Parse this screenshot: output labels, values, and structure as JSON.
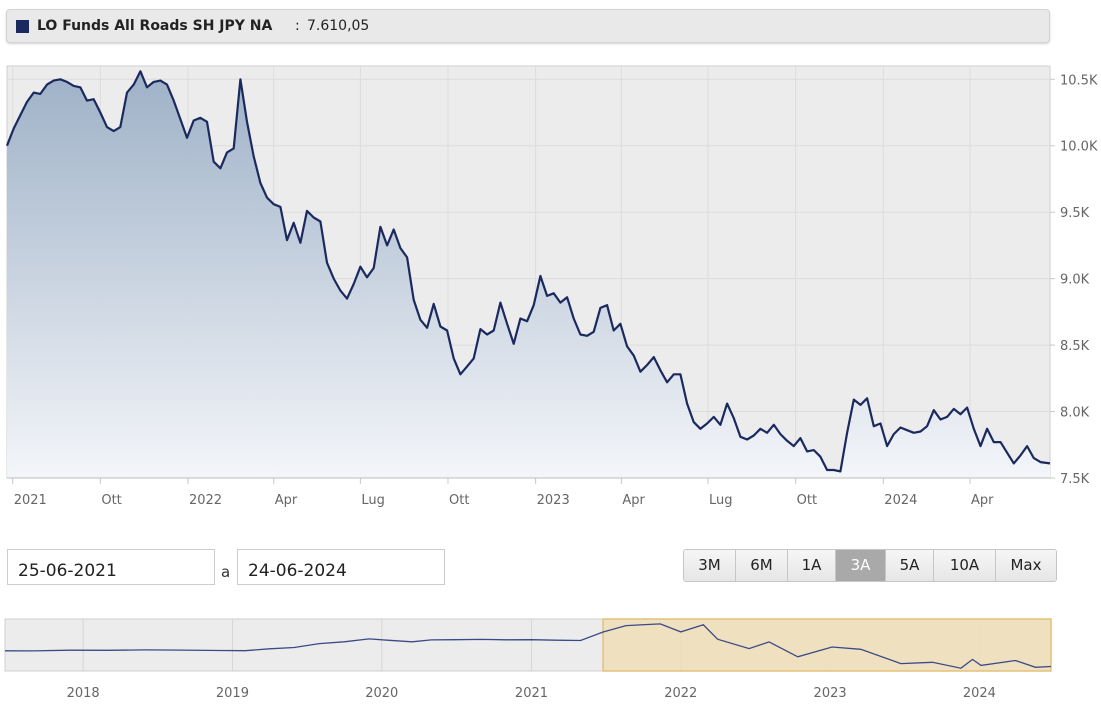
{
  "header": {
    "fund_name": "LO Funds All Roads SH JPY NA",
    "separator": ":",
    "last_value": "7.610,05",
    "series_color": "#1b2a5e"
  },
  "chart_data": [
    {
      "type": "area",
      "ylim": [
        7500,
        10600
      ],
      "y_ticks": [
        7500,
        8000,
        8500,
        9000,
        9500,
        10000,
        10500
      ],
      "y_tick_labels": [
        "7.5K",
        "8.0K",
        "8.5K",
        "9.0K",
        "9.5K",
        "10.0K",
        "10.5K"
      ],
      "x_range": [
        "2021-06-25",
        "2024-06-24"
      ],
      "x_ticks": [
        {
          "date": "2021-07-01",
          "label": "2021"
        },
        {
          "date": "2021-10-01",
          "label": "Ott"
        },
        {
          "date": "2022-01-01",
          "label": "2022"
        },
        {
          "date": "2022-04-01",
          "label": "Apr"
        },
        {
          "date": "2022-07-01",
          "label": "Lug"
        },
        {
          "date": "2022-10-01",
          "label": "Ott"
        },
        {
          "date": "2023-01-01",
          "label": "2023"
        },
        {
          "date": "2023-04-01",
          "label": "Apr"
        },
        {
          "date": "2023-07-01",
          "label": "Lug"
        },
        {
          "date": "2023-10-01",
          "label": "Ott"
        },
        {
          "date": "2024-01-01",
          "label": "2024"
        },
        {
          "date": "2024-04-01",
          "label": "Apr"
        }
      ],
      "grid": true,
      "series": [
        {
          "color": "#1b2a5e",
          "points": [
            [
              "2021-06-25",
              10000
            ],
            [
              "2021-07-02",
              10130
            ],
            [
              "2021-07-09",
              10230
            ],
            [
              "2021-07-16",
              10330
            ],
            [
              "2021-07-23",
              10400
            ],
            [
              "2021-07-30",
              10390
            ],
            [
              "2021-08-06",
              10460
            ],
            [
              "2021-08-13",
              10490
            ],
            [
              "2021-08-20",
              10500
            ],
            [
              "2021-08-27",
              10480
            ],
            [
              "2021-09-03",
              10450
            ],
            [
              "2021-09-10",
              10440
            ],
            [
              "2021-09-17",
              10340
            ],
            [
              "2021-09-24",
              10350
            ],
            [
              "2021-10-01",
              10250
            ],
            [
              "2021-10-08",
              10140
            ],
            [
              "2021-10-15",
              10110
            ],
            [
              "2021-10-22",
              10140
            ],
            [
              "2021-10-29",
              10400
            ],
            [
              "2021-11-05",
              10460
            ],
            [
              "2021-11-12",
              10560
            ],
            [
              "2021-11-19",
              10440
            ],
            [
              "2021-11-26",
              10480
            ],
            [
              "2021-12-03",
              10490
            ],
            [
              "2021-12-10",
              10460
            ],
            [
              "2021-12-17",
              10340
            ],
            [
              "2021-12-24",
              10200
            ],
            [
              "2021-12-31",
              10060
            ],
            [
              "2022-01-07",
              10190
            ],
            [
              "2022-01-14",
              10210
            ],
            [
              "2022-01-21",
              10180
            ],
            [
              "2022-01-28",
              9880
            ],
            [
              "2022-02-04",
              9830
            ],
            [
              "2022-02-11",
              9950
            ],
            [
              "2022-02-18",
              9980
            ],
            [
              "2022-02-25",
              10500
            ],
            [
              "2022-03-04",
              10180
            ],
            [
              "2022-03-11",
              9920
            ],
            [
              "2022-03-18",
              9720
            ],
            [
              "2022-03-25",
              9610
            ],
            [
              "2022-04-01",
              9560
            ],
            [
              "2022-04-08",
              9540
            ],
            [
              "2022-04-15",
              9290
            ],
            [
              "2022-04-22",
              9420
            ],
            [
              "2022-04-29",
              9270
            ],
            [
              "2022-05-06",
              9510
            ],
            [
              "2022-05-13",
              9460
            ],
            [
              "2022-05-20",
              9430
            ],
            [
              "2022-05-27",
              9120
            ],
            [
              "2022-06-03",
              9000
            ],
            [
              "2022-06-10",
              8910
            ],
            [
              "2022-06-17",
              8850
            ],
            [
              "2022-06-24",
              8960
            ],
            [
              "2022-07-01",
              9090
            ],
            [
              "2022-07-08",
              9010
            ],
            [
              "2022-07-15",
              9080
            ],
            [
              "2022-07-22",
              9390
            ],
            [
              "2022-07-29",
              9250
            ],
            [
              "2022-08-05",
              9370
            ],
            [
              "2022-08-12",
              9230
            ],
            [
              "2022-08-19",
              9160
            ],
            [
              "2022-08-26",
              8840
            ],
            [
              "2022-09-02",
              8690
            ],
            [
              "2022-09-09",
              8630
            ],
            [
              "2022-09-16",
              8810
            ],
            [
              "2022-09-23",
              8640
            ],
            [
              "2022-09-30",
              8610
            ],
            [
              "2022-10-07",
              8400
            ],
            [
              "2022-10-14",
              8280
            ],
            [
              "2022-10-21",
              8340
            ],
            [
              "2022-10-28",
              8400
            ],
            [
              "2022-11-04",
              8620
            ],
            [
              "2022-11-11",
              8580
            ],
            [
              "2022-11-18",
              8610
            ],
            [
              "2022-11-25",
              8820
            ],
            [
              "2022-12-02",
              8660
            ],
            [
              "2022-12-09",
              8510
            ],
            [
              "2022-12-16",
              8700
            ],
            [
              "2022-12-23",
              8680
            ],
            [
              "2022-12-30",
              8800
            ],
            [
              "2023-01-06",
              9020
            ],
            [
              "2023-01-13",
              8870
            ],
            [
              "2023-01-20",
              8890
            ],
            [
              "2023-01-27",
              8820
            ],
            [
              "2023-02-03",
              8860
            ],
            [
              "2023-02-10",
              8700
            ],
            [
              "2023-02-17",
              8580
            ],
            [
              "2023-02-24",
              8570
            ],
            [
              "2023-03-03",
              8600
            ],
            [
              "2023-03-10",
              8780
            ],
            [
              "2023-03-17",
              8800
            ],
            [
              "2023-03-24",
              8610
            ],
            [
              "2023-03-31",
              8660
            ],
            [
              "2023-04-07",
              8490
            ],
            [
              "2023-04-14",
              8420
            ],
            [
              "2023-04-21",
              8300
            ],
            [
              "2023-04-28",
              8350
            ],
            [
              "2023-05-05",
              8410
            ],
            [
              "2023-05-12",
              8310
            ],
            [
              "2023-05-19",
              8220
            ],
            [
              "2023-05-26",
              8280
            ],
            [
              "2023-06-02",
              8280
            ],
            [
              "2023-06-09",
              8060
            ],
            [
              "2023-06-16",
              7920
            ],
            [
              "2023-06-23",
              7870
            ],
            [
              "2023-06-30",
              7910
            ],
            [
              "2023-07-07",
              7960
            ],
            [
              "2023-07-14",
              7900
            ],
            [
              "2023-07-21",
              8060
            ],
            [
              "2023-07-28",
              7950
            ],
            [
              "2023-08-04",
              7810
            ],
            [
              "2023-08-11",
              7790
            ],
            [
              "2023-08-18",
              7820
            ],
            [
              "2023-08-25",
              7870
            ],
            [
              "2023-09-01",
              7840
            ],
            [
              "2023-09-08",
              7900
            ],
            [
              "2023-09-15",
              7830
            ],
            [
              "2023-09-22",
              7780
            ],
            [
              "2023-09-29",
              7740
            ],
            [
              "2023-10-06",
              7800
            ],
            [
              "2023-10-13",
              7700
            ],
            [
              "2023-10-20",
              7710
            ],
            [
              "2023-10-27",
              7660
            ],
            [
              "2023-11-03",
              7560
            ],
            [
              "2023-11-10",
              7560
            ],
            [
              "2023-11-17",
              7550
            ],
            [
              "2023-11-24",
              7840
            ],
            [
              "2023-12-01",
              8090
            ],
            [
              "2023-12-08",
              8050
            ],
            [
              "2023-12-15",
              8100
            ],
            [
              "2023-12-22",
              7890
            ],
            [
              "2023-12-29",
              7910
            ],
            [
              "2024-01-05",
              7740
            ],
            [
              "2024-01-12",
              7830
            ],
            [
              "2024-01-19",
              7880
            ],
            [
              "2024-01-26",
              7860
            ],
            [
              "2024-02-02",
              7840
            ],
            [
              "2024-02-09",
              7850
            ],
            [
              "2024-02-16",
              7890
            ],
            [
              "2024-02-23",
              8010
            ],
            [
              "2024-03-01",
              7940
            ],
            [
              "2024-03-08",
              7960
            ],
            [
              "2024-03-15",
              8020
            ],
            [
              "2024-03-22",
              7980
            ],
            [
              "2024-03-29",
              8030
            ],
            [
              "2024-04-05",
              7870
            ],
            [
              "2024-04-12",
              7740
            ],
            [
              "2024-04-19",
              7870
            ],
            [
              "2024-04-26",
              7770
            ],
            [
              "2024-05-03",
              7770
            ],
            [
              "2024-05-10",
              7690
            ],
            [
              "2024-05-17",
              7610
            ],
            [
              "2024-05-24",
              7670
            ],
            [
              "2024-05-31",
              7740
            ],
            [
              "2024-06-07",
              7650
            ],
            [
              "2024-06-14",
              7620
            ],
            [
              "2024-06-24",
              7610
            ]
          ]
        }
      ]
    },
    {
      "type": "line",
      "role": "navigator",
      "x_range": [
        "2017-06-24",
        "2024-06-24"
      ],
      "x_ticks": [
        {
          "date": "2018-01-01",
          "label": "2018"
        },
        {
          "date": "2019-01-01",
          "label": "2019"
        },
        {
          "date": "2020-01-01",
          "label": "2020"
        },
        {
          "date": "2021-01-01",
          "label": "2021"
        },
        {
          "date": "2022-01-01",
          "label": "2022"
        },
        {
          "date": "2023-01-01",
          "label": "2023"
        },
        {
          "date": "2024-01-01",
          "label": "2024"
        }
      ],
      "selected_range": [
        "2021-06-25",
        "2024-06-24"
      ],
      "selection_color": "#f0dfb8",
      "series": [
        {
          "color": "#3b4a86",
          "points": [
            [
              "2017-06-24",
              8700
            ],
            [
              "2017-09-01",
              8750
            ],
            [
              "2017-12-01",
              8740
            ],
            [
              "2018-03-01",
              8790
            ],
            [
              "2018-06-01",
              8760
            ],
            [
              "2018-09-01",
              8800
            ],
            [
              "2018-12-01",
              8720
            ],
            [
              "2019-02-01",
              8760
            ],
            [
              "2019-04-01",
              8840
            ],
            [
              "2019-06-01",
              8980
            ],
            [
              "2019-08-01",
              9200
            ],
            [
              "2019-10-01",
              9380
            ],
            [
              "2019-12-01",
              9520
            ],
            [
              "2020-01-15",
              9490
            ],
            [
              "2020-03-15",
              9320
            ],
            [
              "2020-05-01",
              9510
            ],
            [
              "2020-07-01",
              9470
            ],
            [
              "2020-09-01",
              9540
            ],
            [
              "2020-11-01",
              9460
            ],
            [
              "2021-01-01",
              9520
            ],
            [
              "2021-03-01",
              9430
            ],
            [
              "2021-05-01",
              9470
            ],
            [
              "2021-06-25",
              10000
            ],
            [
              "2021-08-20",
              10500
            ],
            [
              "2021-11-12",
              10560
            ],
            [
              "2022-01-01",
              10060
            ],
            [
              "2022-02-25",
              10500
            ],
            [
              "2022-04-01",
              9560
            ],
            [
              "2022-06-17",
              8850
            ],
            [
              "2022-08-05",
              9370
            ],
            [
              "2022-10-14",
              8280
            ],
            [
              "2023-01-06",
              9020
            ],
            [
              "2023-03-17",
              8800
            ],
            [
              "2023-06-23",
              7870
            ],
            [
              "2023-09-08",
              7900
            ],
            [
              "2023-11-17",
              7550
            ],
            [
              "2023-12-15",
              8100
            ],
            [
              "2024-01-05",
              7740
            ],
            [
              "2024-03-29",
              8030
            ],
            [
              "2024-05-17",
              7610
            ],
            [
              "2024-06-24",
              7610
            ]
          ]
        }
      ]
    }
  ],
  "range_selector": {
    "from_value": "25-06-2021",
    "to_value": "24-06-2024",
    "separator": "a",
    "buttons": [
      "3M",
      "6M",
      "1A",
      "3A",
      "5A",
      "10A",
      "Max"
    ],
    "active": "3A"
  }
}
